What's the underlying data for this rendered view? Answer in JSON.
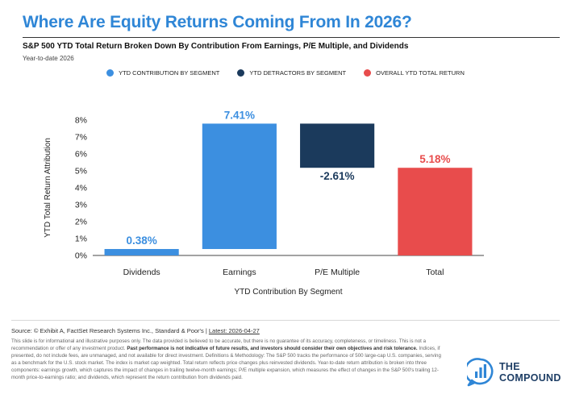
{
  "header": {
    "title": "Where Are Equity Returns Coming From In 2026?",
    "subtitle": "S&P 500 YTD Total Return Broken Down By Contribution From Earnings, P/E Multiple, and Dividends",
    "period": "Year-to-date 2026"
  },
  "legend": [
    {
      "label": "YTD CONTRIBUTION BY SEGMENT",
      "color": "#3c8fe0"
    },
    {
      "label": "YTD DETRACTORS BY SEGMENT",
      "color": "#1b3a5c"
    },
    {
      "label": "OVERALL YTD TOTAL RETURN",
      "color": "#e84c4c"
    }
  ],
  "chart_data": {
    "type": "waterfall",
    "categories": [
      "Dividends",
      "Earnings",
      "P/E Multiple",
      "Total"
    ],
    "values": [
      0.38,
      7.41,
      -2.61,
      5.18
    ],
    "data_labels": [
      "0.38%",
      "7.41%",
      "-2.61%",
      "5.18%"
    ],
    "colors": [
      "#3c8fe0",
      "#3c8fe0",
      "#1b3a5c",
      "#e84c4c"
    ],
    "xlabel": "YTD Contribution By Segment",
    "ylabel": "YTD Total Return Attribution",
    "ylim": [
      0,
      8
    ],
    "yticks": [
      "0%",
      "1%",
      "2%",
      "3%",
      "4%",
      "5%",
      "6%",
      "7%",
      "8%"
    ],
    "grid": false
  },
  "footer": {
    "source_prefix": "Source: © Exhibit A, FactSet Research Systems Inc., Standard & Poor's | ",
    "latest": "Latest: 2026-04-27",
    "disclaimer_a": "This slide is for informational and illustrative purposes only. The data provided is believed to be accurate, but there is no guarantee of its accuracy, completeness, or timeliness. This is not a recommendation or offer of any investment product. ",
    "disclaimer_bold": "Past performance is not indicative of future results, and investors should consider their own objectives and risk tolerance.",
    "disclaimer_b": " Indices, if presented, do not include fees, are unmanaged, and not available for direct investment. Definitions & Methodology: The S&P 500 tracks the performance of 500 large-cap U.S. companies, serving as a benchmark for the U.S. stock market. The index is market cap weighted. Total return reflects price changes plus reinvested dividends. Year-to-date return attribution is broken into three components: earnings growth, which captures the impact of changes in trailing twelve-month earnings; P/E multiple expansion, which measures the effect of changes in the S&P 500's trailing 12-month price-to-earnings ratio; and dividends, which represent the return contribution from dividends paid."
  },
  "brand": {
    "line1": "THE",
    "line2": "COMPOUND",
    "icon": "bar-chart-bubble-icon",
    "color": "#2f86d6"
  }
}
